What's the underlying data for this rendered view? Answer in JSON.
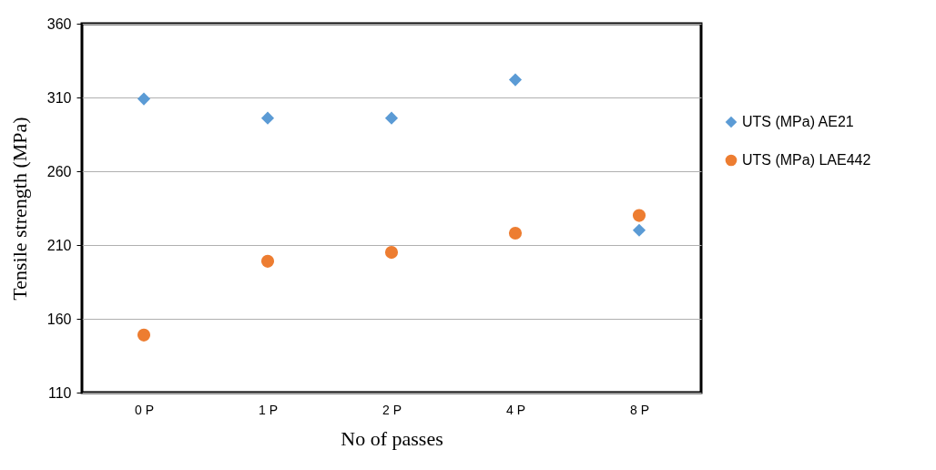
{
  "chart_data": {
    "type": "scatter",
    "xlabel": "No of passes",
    "ylabel": "Tensile strength (MPa)",
    "categories": [
      "0 P",
      "1 P",
      "2 P",
      "4 P",
      "8 P"
    ],
    "series": [
      {
        "name": "UTS (MPa) AE21",
        "color": "#5b9bd5",
        "marker": "diamond",
        "values": [
          309,
          296,
          296,
          322,
          220
        ]
      },
      {
        "name": "UTS (MPa) LAE442",
        "color": "#ed7d31",
        "marker": "circle",
        "values": [
          149,
          199,
          205,
          218,
          230
        ]
      }
    ],
    "ylim": [
      110,
      360
    ],
    "yticks": [
      110,
      160,
      210,
      260,
      310,
      360
    ],
    "grid": "y",
    "legend": "right"
  }
}
